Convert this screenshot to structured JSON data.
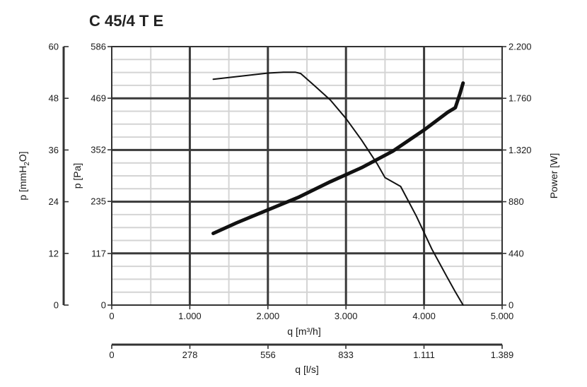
{
  "title": "C 45/4 T E",
  "chart_data": {
    "type": "line",
    "title": "C 45/4 T E",
    "x_axis": {
      "label": "q [m³/h]",
      "ticks": [
        0,
        1000,
        2000,
        3000,
        4000,
        5000
      ],
      "tick_labels": [
        "0",
        "1.000",
        "2.000",
        "3.000",
        "4.000",
        "5.000"
      ],
      "range": [
        0,
        5000
      ]
    },
    "x_axis_secondary": {
      "label": "q [l/s]",
      "ticks": [
        0,
        278,
        556,
        833,
        1111,
        1389
      ],
      "tick_labels": [
        "0",
        "278",
        "556",
        "833",
        "1.111",
        "1.389"
      ],
      "range": [
        0,
        1389
      ]
    },
    "y_axis_pa": {
      "label": "p [Pa]",
      "ticks": [
        0,
        117,
        235,
        352,
        469,
        586
      ],
      "tick_labels": [
        "0",
        "117",
        "235",
        "352",
        "469",
        "586"
      ],
      "range": [
        0,
        586
      ]
    },
    "y_axis_mmh2o": {
      "label_main": "p [mmH",
      "label_sub": "2",
      "label_end": "O]",
      "ticks": [
        0,
        12,
        24,
        36,
        48,
        60
      ],
      "tick_labels": [
        "0",
        "12",
        "24",
        "36",
        "48",
        "60"
      ],
      "range": [
        0,
        60
      ]
    },
    "y_axis_power": {
      "label": "Power [W]",
      "ticks": [
        0,
        440,
        880,
        1320,
        1760,
        2200
      ],
      "tick_labels": [
        "0",
        "440",
        "880",
        "1.320",
        "1.760",
        "2.200"
      ],
      "range": [
        0,
        2200
      ]
    },
    "series": [
      {
        "axis": "pressure_pa",
        "x": [
          1300,
          1600,
          2000,
          2200,
          2350,
          2420,
          2600,
          2800,
          3000,
          3200,
          3400,
          3500,
          3700,
          3900,
          4100,
          4300,
          4400,
          4500
        ],
        "y": [
          512,
          518,
          526,
          528,
          528,
          525,
          497,
          465,
          423,
          374,
          320,
          289,
          269,
          202,
          127,
          62,
          30,
          0
        ]
      },
      {
        "axis": "power_w",
        "x": [
          1300,
          1600,
          2000,
          2400,
          2800,
          3200,
          3600,
          4000,
          4300,
          4400,
          4460,
          4500
        ],
        "y": [
          610,
          700,
          810,
          920,
          1050,
          1170,
          1310,
          1490,
          1640,
          1680,
          1800,
          1890
        ]
      }
    ],
    "grid": true
  }
}
